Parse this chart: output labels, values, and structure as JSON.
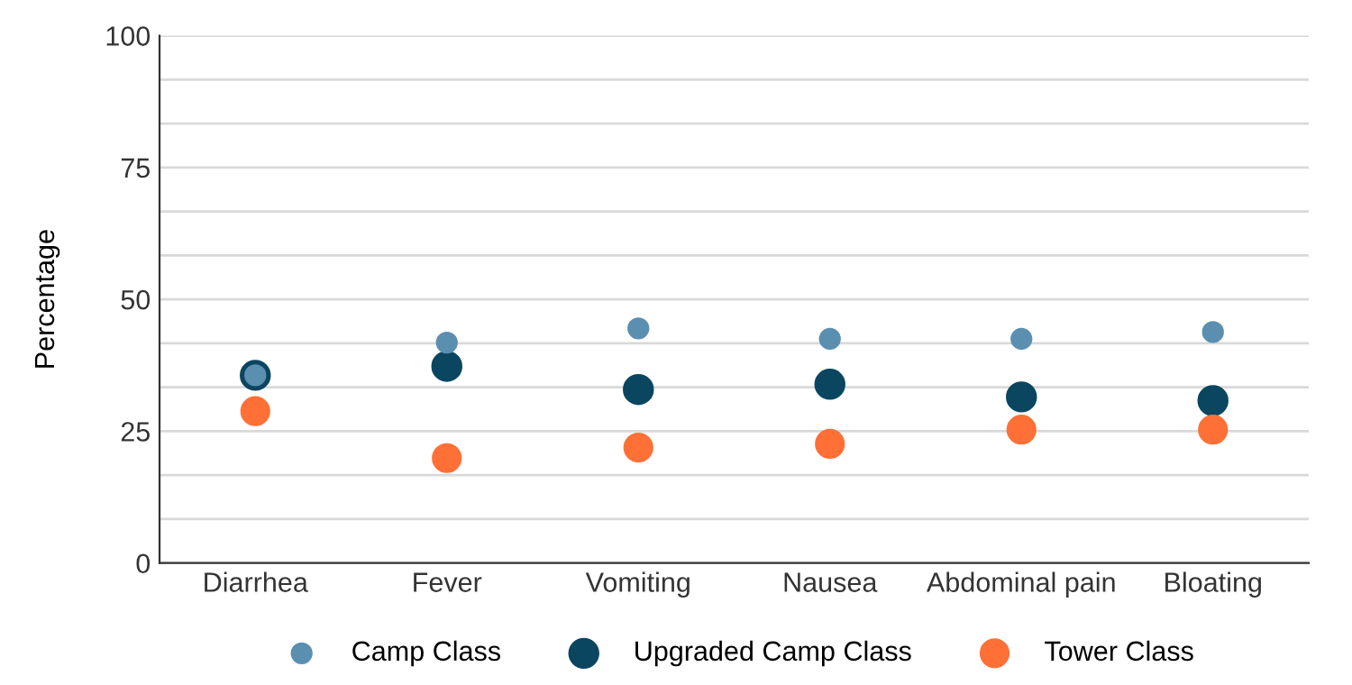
{
  "chart_data": {
    "type": "scatter",
    "ylabel": "Percentage",
    "categories": [
      "Diarrhea",
      "Fever",
      "Vomiting",
      "Nausea",
      "Abdominal pain",
      "Bloating"
    ],
    "series": [
      {
        "name": "Camp Class",
        "color": "#5b8fb0",
        "values": [
          35.6,
          41.8,
          44.5,
          42.5,
          42.5,
          43.8
        ]
      },
      {
        "name": "Upgraded Camp Class",
        "color": "#0b4660",
        "values": [
          35.6,
          37.3,
          32.9,
          33.9,
          31.5,
          30.8
        ]
      },
      {
        "name": "Tower Class",
        "color": "#ff7037",
        "values": [
          28.8,
          19.9,
          21.9,
          22.6,
          25.3,
          25.3
        ]
      }
    ],
    "ylim": [
      0,
      100
    ],
    "yticks": [
      0,
      {
        "value": 8.33,
        "label": null
      },
      {
        "value": 16.67,
        "label": null
      },
      25,
      {
        "value": 33.33,
        "label": null
      },
      {
        "value": 41.67,
        "label": null
      },
      50,
      {
        "value": 58.33,
        "label": null
      },
      {
        "value": 66.67,
        "label": null
      },
      75,
      {
        "value": 83.33,
        "label": null
      },
      {
        "value": 91.67,
        "label": null
      },
      100
    ],
    "grid": "y",
    "legend": "bottom",
    "marker": "circle"
  }
}
